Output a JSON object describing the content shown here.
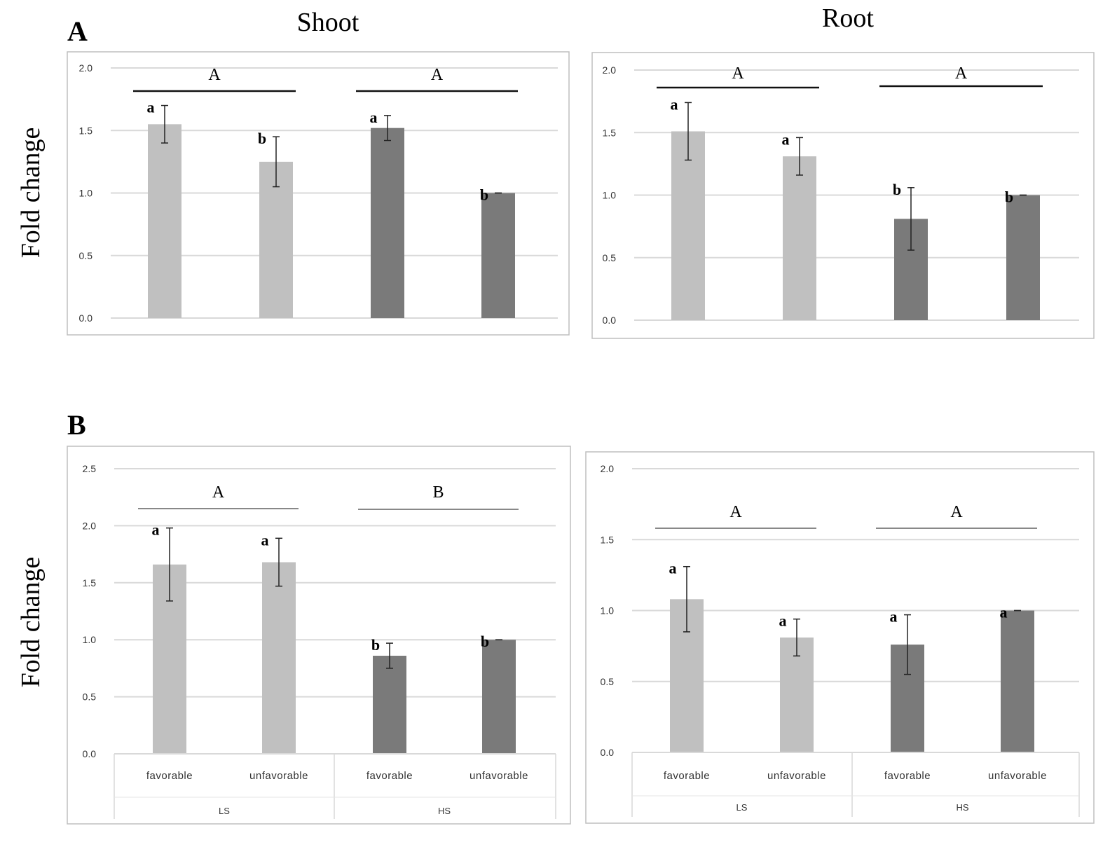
{
  "figure": {
    "panel_labels": [
      "A",
      "B"
    ],
    "column_titles": [
      "Shoot",
      "Root"
    ],
    "ylabel": "Fold change"
  },
  "colors": {
    "light_bar": "#c0c0c0",
    "dark_bar": "#7a7a7a",
    "grid": "#d9d9d9",
    "frame": "#bfbfbf",
    "text": "#000000"
  },
  "chart_data": [
    {
      "id": "A-shoot",
      "panel": "A",
      "column": "Shoot",
      "type": "bar",
      "ylim": [
        0,
        2.0
      ],
      "yticks": [
        "0.0",
        "0.5",
        "1.0",
        "1.5",
        "2.0"
      ],
      "groups": [
        {
          "label": "A",
          "bars": [
            0,
            1
          ]
        },
        {
          "label": "A",
          "bars": [
            2,
            3
          ]
        }
      ],
      "bars": [
        {
          "value": 1.55,
          "err": 0.15,
          "letter": "a",
          "shade": "light"
        },
        {
          "value": 1.25,
          "err": 0.2,
          "letter": "b",
          "shade": "light"
        },
        {
          "value": 1.52,
          "err": 0.1,
          "letter": "a",
          "shade": "dark"
        },
        {
          "value": 1.0,
          "err": 0.0,
          "letter": "b",
          "shade": "dark"
        }
      ]
    },
    {
      "id": "A-root",
      "panel": "A",
      "column": "Root",
      "type": "bar",
      "ylim": [
        0,
        2.0
      ],
      "yticks": [
        "0.0",
        "0.5",
        "1.0",
        "1.5",
        "2.0"
      ],
      "groups": [
        {
          "label": "A",
          "bars": [
            0,
            1
          ]
        },
        {
          "label": "A",
          "bars": [
            2,
            3
          ]
        }
      ],
      "bars": [
        {
          "value": 1.51,
          "err": 0.23,
          "letter": "a",
          "shade": "light"
        },
        {
          "value": 1.31,
          "err": 0.15,
          "letter": "a",
          "shade": "light"
        },
        {
          "value": 0.81,
          "err": 0.25,
          "letter": "b",
          "shade": "dark"
        },
        {
          "value": 1.0,
          "err": 0.0,
          "letter": "b",
          "shade": "dark"
        }
      ]
    },
    {
      "id": "B-shoot",
      "panel": "B",
      "column": "Shoot",
      "type": "bar",
      "ylim": [
        0,
        2.5
      ],
      "yticks": [
        "0.0",
        "0.5",
        "1.0",
        "1.5",
        "2.0",
        "2.5"
      ],
      "categories": [
        "favorable",
        "unfavorable",
        "favorable",
        "unfavorable"
      ],
      "outer_categories": [
        "LS",
        "HS"
      ],
      "groups": [
        {
          "label": "A",
          "bars": [
            0,
            1
          ]
        },
        {
          "label": "B",
          "bars": [
            2,
            3
          ]
        }
      ],
      "bars": [
        {
          "value": 1.66,
          "err": 0.32,
          "letter": "a",
          "shade": "light"
        },
        {
          "value": 1.68,
          "err": 0.21,
          "letter": "a",
          "shade": "light"
        },
        {
          "value": 0.86,
          "err": 0.11,
          "letter": "b",
          "shade": "dark"
        },
        {
          "value": 1.0,
          "err": 0.0,
          "letter": "b",
          "shade": "dark"
        }
      ]
    },
    {
      "id": "B-root",
      "panel": "B",
      "column": "Root",
      "type": "bar",
      "ylim": [
        0,
        2.0
      ],
      "yticks": [
        "0.0",
        "0.5",
        "1.0",
        "1.5",
        "2.0"
      ],
      "categories": [
        "favorable",
        "unfavorable",
        "favorable",
        "unfavorable"
      ],
      "outer_categories": [
        "LS",
        "HS"
      ],
      "groups": [
        {
          "label": "A",
          "bars": [
            0,
            1
          ]
        },
        {
          "label": "A",
          "bars": [
            2,
            3
          ]
        }
      ],
      "bars": [
        {
          "value": 1.08,
          "err": 0.23,
          "letter": "a",
          "shade": "light"
        },
        {
          "value": 0.81,
          "err": 0.13,
          "letter": "a",
          "shade": "light"
        },
        {
          "value": 0.76,
          "err": 0.21,
          "letter": "a",
          "shade": "dark"
        },
        {
          "value": 1.0,
          "err": 0.0,
          "letter": "a",
          "shade": "dark"
        }
      ]
    }
  ]
}
